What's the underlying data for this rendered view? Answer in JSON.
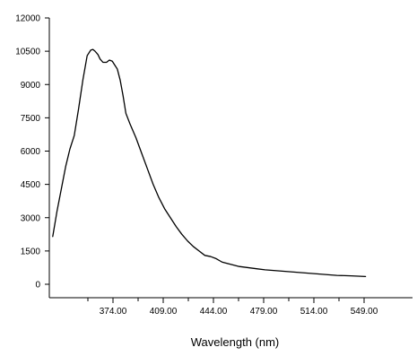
{
  "chart_data": {
    "type": "line",
    "title": "",
    "xlabel": "Wavelength (nm)",
    "ylabel": "",
    "xlim": [
      332.0,
      559.0
    ],
    "ylim": [
      -500,
      12000
    ],
    "x_ticks": [
      374,
      409,
      444,
      479,
      514,
      549
    ],
    "x_tick_labels": [
      "374.00",
      "409.00",
      "444.00",
      "479.00",
      "514.00",
      "549.00"
    ],
    "y_ticks": [
      0,
      1500,
      3000,
      4500,
      6000,
      7500,
      9000,
      10500,
      12000
    ],
    "y_tick_labels": [
      "0",
      "1500",
      "3000",
      "4500",
      "6000",
      "7500",
      "9000",
      "10500",
      "12000"
    ],
    "grid": false,
    "legend": "none",
    "series_color": "#000000",
    "series": [
      {
        "x": [
          332.0,
          335.0,
          338.0,
          341.0,
          344.0,
          347.0,
          350.0,
          353.0,
          356.0,
          358.5,
          360.0,
          361.5,
          363.5,
          365.0,
          367.0,
          369.5,
          371.5,
          373.5,
          375.0,
          377.0,
          379.0,
          381.0,
          383.0,
          386.0,
          390.0,
          394.0,
          398.0,
          402.0,
          406.0,
          410.0,
          414.0,
          418.0,
          422.0,
          426.0,
          430.0,
          434.0,
          438.0,
          442.0,
          446.0,
          450.0,
          456.0,
          462.0,
          468.0,
          474.0,
          480.0,
          490.0,
          500.0,
          510.0,
          520.0,
          530.0,
          540.0,
          550.0
        ],
        "y": [
          2150,
          3300,
          4300,
          5300,
          6100,
          6700,
          7900,
          9200,
          10300,
          10550,
          10580,
          10500,
          10350,
          10150,
          10000,
          10000,
          10100,
          10050,
          9900,
          9700,
          9200,
          8500,
          7700,
          7200,
          6600,
          5900,
          5200,
          4500,
          3900,
          3400,
          3000,
          2600,
          2250,
          1950,
          1700,
          1500,
          1300,
          1250,
          1150,
          1000,
          900,
          800,
          750,
          700,
          650,
          600,
          550,
          500,
          450,
          400,
          380,
          350
        ]
      }
    ]
  }
}
